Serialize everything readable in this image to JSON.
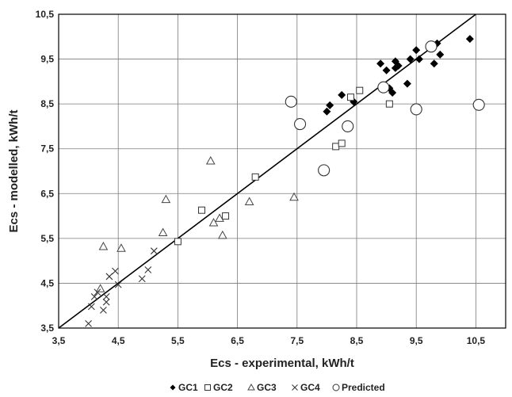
{
  "chart_data": {
    "type": "scatter",
    "xlabel": "Ecs - experimental, kWh/t",
    "ylabel": "Ecs - modelled, kWh/t",
    "xlim": [
      3.5,
      11.0
    ],
    "ylim": [
      3.5,
      10.5
    ],
    "x_ticks": [
      "3,5",
      "4,5",
      "5,5",
      "6,5",
      "7,5",
      "8,5",
      "9,5",
      "10,5"
    ],
    "y_ticks": [
      "3,5",
      "4,5",
      "5,5",
      "6,5",
      "7,5",
      "8,5",
      "9,5",
      "10,5"
    ],
    "grid": "horizontal-and-vertical",
    "reference_line": {
      "from": [
        3.5,
        3.5
      ],
      "to": [
        10.5,
        10.5
      ]
    },
    "legend_position": "bottom",
    "series": [
      {
        "name": "GC1",
        "marker": "filled-diamond",
        "points": [
          [
            8.0,
            8.33
          ],
          [
            8.05,
            8.47
          ],
          [
            8.25,
            8.7
          ],
          [
            8.45,
            8.55
          ],
          [
            8.9,
            9.4
          ],
          [
            9.0,
            9.25
          ],
          [
            9.05,
            8.85
          ],
          [
            9.1,
            8.75
          ],
          [
            9.15,
            9.45
          ],
          [
            9.15,
            9.3
          ],
          [
            9.2,
            9.35
          ],
          [
            9.35,
            8.95
          ],
          [
            9.4,
            9.5
          ],
          [
            9.5,
            9.7
          ],
          [
            9.55,
            9.5
          ],
          [
            9.8,
            9.4
          ],
          [
            9.85,
            9.85
          ],
          [
            9.9,
            9.6
          ],
          [
            10.4,
            9.95
          ]
        ]
      },
      {
        "name": "GC2",
        "marker": "open-square",
        "points": [
          [
            5.5,
            5.43
          ],
          [
            5.9,
            6.13
          ],
          [
            6.3,
            6.0
          ],
          [
            6.8,
            6.87
          ],
          [
            8.15,
            7.55
          ],
          [
            8.25,
            7.62
          ],
          [
            8.4,
            8.65
          ],
          [
            8.55,
            8.8
          ],
          [
            9.05,
            8.5
          ]
        ]
      },
      {
        "name": "GC3",
        "marker": "open-triangle",
        "points": [
          [
            4.2,
            4.38
          ],
          [
            4.25,
            5.32
          ],
          [
            4.55,
            5.28
          ],
          [
            5.25,
            5.63
          ],
          [
            5.3,
            6.37
          ],
          [
            6.05,
            7.23
          ],
          [
            6.1,
            5.85
          ],
          [
            6.2,
            5.95
          ],
          [
            6.25,
            5.57
          ],
          [
            6.7,
            6.32
          ],
          [
            7.45,
            6.42
          ]
        ]
      },
      {
        "name": "GC4",
        "marker": "cross",
        "points": [
          [
            4.0,
            3.6
          ],
          [
            4.05,
            3.98
          ],
          [
            4.1,
            4.2
          ],
          [
            4.15,
            4.3
          ],
          [
            4.25,
            3.9
          ],
          [
            4.3,
            4.08
          ],
          [
            4.3,
            4.2
          ],
          [
            4.35,
            4.65
          ],
          [
            4.45,
            4.77
          ],
          [
            4.5,
            4.47
          ],
          [
            4.9,
            4.6
          ],
          [
            5.0,
            4.8
          ],
          [
            5.1,
            5.22
          ]
        ]
      },
      {
        "name": "Predicted",
        "marker": "open-circle",
        "points": [
          [
            7.4,
            8.55
          ],
          [
            7.55,
            8.05
          ],
          [
            7.95,
            7.02
          ],
          [
            8.35,
            8.0
          ],
          [
            8.95,
            8.87
          ],
          [
            9.5,
            8.38
          ],
          [
            9.75,
            9.78
          ],
          [
            10.55,
            8.48
          ]
        ]
      }
    ]
  }
}
